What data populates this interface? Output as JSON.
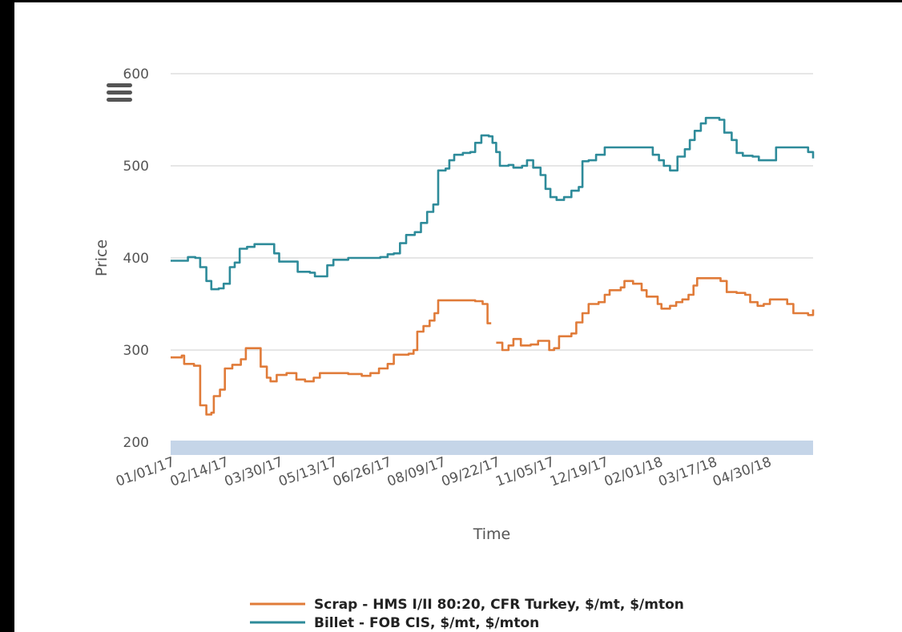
{
  "colors": {
    "scrap": "#e07b39",
    "billet": "#2e8b9a",
    "grid": "#cccccc",
    "navigator": "#c5d5e8"
  },
  "menu": {
    "icon": "hamburger-menu-icon"
  },
  "chart_data": {
    "type": "line",
    "title": "",
    "xlabel": "Time",
    "ylabel": "Price",
    "ylim": [
      200,
      600
    ],
    "yticks": [
      200,
      300,
      400,
      500,
      600
    ],
    "xlim": [
      "2017-01-01",
      "2018-06-06"
    ],
    "xticks": [
      {
        "date": "2017-01-01",
        "label": "01/01/17"
      },
      {
        "date": "2017-02-14",
        "label": "02/14/17"
      },
      {
        "date": "2017-03-30",
        "label": "03/30/17"
      },
      {
        "date": "2017-05-13",
        "label": "05/13/17"
      },
      {
        "date": "2017-06-26",
        "label": "06/26/17"
      },
      {
        "date": "2017-08-09",
        "label": "08/09/17"
      },
      {
        "date": "2017-09-22",
        "label": "09/22/17"
      },
      {
        "date": "2017-11-05",
        "label": "11/05/17"
      },
      {
        "date": "2017-12-19",
        "label": "12/19/17"
      },
      {
        "date": "2018-02-01",
        "label": "02/01/18"
      },
      {
        "date": "2018-03-17",
        "label": "03/17/18"
      },
      {
        "date": "2018-04-30",
        "label": "04/30/18"
      }
    ],
    "grid": true,
    "legend": "bottom-center",
    "series": [
      {
        "name": "Scrap - HMS I/II 80:20, CFR Turkey, $/mt, $/mton",
        "color": "#e07b39",
        "points": [
          [
            "2017-01-01",
            292
          ],
          [
            "2017-01-10",
            294
          ],
          [
            "2017-01-12",
            285
          ],
          [
            "2017-01-20",
            283
          ],
          [
            "2017-01-25",
            240
          ],
          [
            "2017-01-30",
            230
          ],
          [
            "2017-02-03",
            232
          ],
          [
            "2017-02-05",
            250
          ],
          [
            "2017-02-10",
            257
          ],
          [
            "2017-02-14",
            280
          ],
          [
            "2017-02-20",
            284
          ],
          [
            "2017-02-27",
            290
          ],
          [
            "2017-03-03",
            302
          ],
          [
            "2017-03-10",
            302
          ],
          [
            "2017-03-15",
            282
          ],
          [
            "2017-03-20",
            270
          ],
          [
            "2017-03-23",
            266
          ],
          [
            "2017-03-28",
            273
          ],
          [
            "2017-04-05",
            275
          ],
          [
            "2017-04-13",
            268
          ],
          [
            "2017-04-20",
            266
          ],
          [
            "2017-04-27",
            270
          ],
          [
            "2017-05-02",
            275
          ],
          [
            "2017-05-16",
            275
          ],
          [
            "2017-05-25",
            274
          ],
          [
            "2017-06-05",
            272
          ],
          [
            "2017-06-12",
            275
          ],
          [
            "2017-06-19",
            280
          ],
          [
            "2017-06-26",
            285
          ],
          [
            "2017-07-01",
            295
          ],
          [
            "2017-07-13",
            296
          ],
          [
            "2017-07-17",
            300
          ],
          [
            "2017-07-20",
            320
          ],
          [
            "2017-07-25",
            326
          ],
          [
            "2017-07-30",
            332
          ],
          [
            "2017-08-03",
            340
          ],
          [
            "2017-08-06",
            354
          ],
          [
            "2017-08-21",
            354
          ],
          [
            "2017-09-05",
            353
          ],
          [
            "2017-09-11",
            350
          ],
          [
            "2017-09-15",
            329
          ],
          [
            "2017-09-18",
            329
          ],
          null,
          [
            "2017-09-22",
            308
          ],
          [
            "2017-09-27",
            300
          ],
          [
            "2017-10-02",
            305
          ],
          [
            "2017-10-06",
            312
          ],
          [
            "2017-10-12",
            305
          ],
          [
            "2017-10-20",
            306
          ],
          [
            "2017-10-26",
            310
          ],
          [
            "2017-11-01",
            310
          ],
          [
            "2017-11-04",
            300
          ],
          [
            "2017-11-08",
            302
          ],
          [
            "2017-11-12",
            315
          ],
          [
            "2017-11-22",
            318
          ],
          [
            "2017-11-26",
            330
          ],
          [
            "2017-12-01",
            340
          ],
          [
            "2017-12-06",
            350
          ],
          [
            "2017-12-14",
            352
          ],
          [
            "2017-12-19",
            360
          ],
          [
            "2017-12-23",
            365
          ],
          [
            "2018-01-01",
            368
          ],
          [
            "2018-01-04",
            375
          ],
          [
            "2018-01-11",
            372
          ],
          [
            "2018-01-18",
            365
          ],
          [
            "2018-01-22",
            358
          ],
          [
            "2018-01-26",
            358
          ],
          [
            "2018-01-31",
            350
          ],
          [
            "2018-02-03",
            345
          ],
          [
            "2018-02-10",
            348
          ],
          [
            "2018-02-15",
            352
          ],
          [
            "2018-02-20",
            355
          ],
          [
            "2018-02-25",
            360
          ],
          [
            "2018-03-01",
            370
          ],
          [
            "2018-03-04",
            378
          ],
          [
            "2018-03-15",
            378
          ],
          [
            "2018-03-23",
            375
          ],
          [
            "2018-03-28",
            363
          ],
          [
            "2018-04-05",
            362
          ],
          [
            "2018-04-12",
            360
          ],
          [
            "2018-04-16",
            352
          ],
          [
            "2018-04-22",
            348
          ],
          [
            "2018-04-27",
            350
          ],
          [
            "2018-05-02",
            355
          ],
          [
            "2018-05-10",
            355
          ],
          [
            "2018-05-16",
            350
          ],
          [
            "2018-05-21",
            340
          ],
          [
            "2018-05-27",
            340
          ],
          [
            "2018-06-02",
            338
          ],
          [
            "2018-06-06",
            344
          ]
        ]
      },
      {
        "name": "Billet - FOB CIS, $/mt, $/mton",
        "color": "#2e8b9a",
        "points": [
          [
            "2017-01-01",
            397
          ],
          [
            "2017-01-13",
            397
          ],
          [
            "2017-01-15",
            401
          ],
          [
            "2017-01-21",
            400
          ],
          [
            "2017-01-25",
            390
          ],
          [
            "2017-01-30",
            375
          ],
          [
            "2017-02-03",
            366
          ],
          [
            "2017-02-09",
            367
          ],
          [
            "2017-02-13",
            372
          ],
          [
            "2017-02-18",
            390
          ],
          [
            "2017-02-22",
            395
          ],
          [
            "2017-02-26",
            410
          ],
          [
            "2017-03-04",
            412
          ],
          [
            "2017-03-10",
            415
          ],
          [
            "2017-03-21",
            415
          ],
          [
            "2017-03-26",
            405
          ],
          [
            "2017-03-30",
            396
          ],
          [
            "2017-04-10",
            396
          ],
          [
            "2017-04-14",
            385
          ],
          [
            "2017-04-24",
            384
          ],
          [
            "2017-04-28",
            380
          ],
          [
            "2017-05-03",
            380
          ],
          [
            "2017-05-08",
            392
          ],
          [
            "2017-05-13",
            398
          ],
          [
            "2017-05-25",
            400
          ],
          [
            "2017-06-20",
            401
          ],
          [
            "2017-06-26",
            404
          ],
          [
            "2017-07-01",
            405
          ],
          [
            "2017-07-06",
            416
          ],
          [
            "2017-07-11",
            425
          ],
          [
            "2017-07-18",
            428
          ],
          [
            "2017-07-23",
            438
          ],
          [
            "2017-07-28",
            450
          ],
          [
            "2017-08-02",
            458
          ],
          [
            "2017-08-06",
            495
          ],
          [
            "2017-08-12",
            497
          ],
          [
            "2017-08-15",
            506
          ],
          [
            "2017-08-19",
            512
          ],
          [
            "2017-08-26",
            514
          ],
          [
            "2017-09-01",
            515
          ],
          [
            "2017-09-05",
            525
          ],
          [
            "2017-09-10",
            533
          ],
          [
            "2017-09-16",
            532
          ],
          [
            "2017-09-19",
            525
          ],
          [
            "2017-09-22",
            515
          ],
          [
            "2017-09-25",
            500
          ],
          [
            "2017-10-02",
            501
          ],
          [
            "2017-10-06",
            498
          ],
          [
            "2017-10-13",
            500
          ],
          [
            "2017-10-17",
            506
          ],
          [
            "2017-10-22",
            498
          ],
          [
            "2017-10-28",
            490
          ],
          [
            "2017-11-01",
            475
          ],
          [
            "2017-11-05",
            466
          ],
          [
            "2017-11-10",
            463
          ],
          [
            "2017-11-16",
            466
          ],
          [
            "2017-11-22",
            473
          ],
          [
            "2017-11-28",
            477
          ],
          [
            "2017-12-01",
            505
          ],
          [
            "2017-12-06",
            506
          ],
          [
            "2017-12-12",
            512
          ],
          [
            "2017-12-19",
            520
          ],
          [
            "2018-01-22",
            520
          ],
          [
            "2018-01-27",
            512
          ],
          [
            "2018-02-01",
            506
          ],
          [
            "2018-02-05",
            500
          ],
          [
            "2018-02-10",
            495
          ],
          [
            "2018-02-16",
            510
          ],
          [
            "2018-02-22",
            518
          ],
          [
            "2018-02-26",
            528
          ],
          [
            "2018-03-02",
            538
          ],
          [
            "2018-03-07",
            546
          ],
          [
            "2018-03-11",
            552
          ],
          [
            "2018-03-22",
            550
          ],
          [
            "2018-03-26",
            536
          ],
          [
            "2018-04-01",
            528
          ],
          [
            "2018-04-05",
            514
          ],
          [
            "2018-04-10",
            511
          ],
          [
            "2018-04-18",
            510
          ],
          [
            "2018-04-23",
            506
          ],
          [
            "2018-05-03",
            506
          ],
          [
            "2018-05-07",
            520
          ],
          [
            "2018-05-28",
            520
          ],
          [
            "2018-06-02",
            515
          ],
          [
            "2018-06-06",
            508
          ]
        ]
      }
    ]
  }
}
